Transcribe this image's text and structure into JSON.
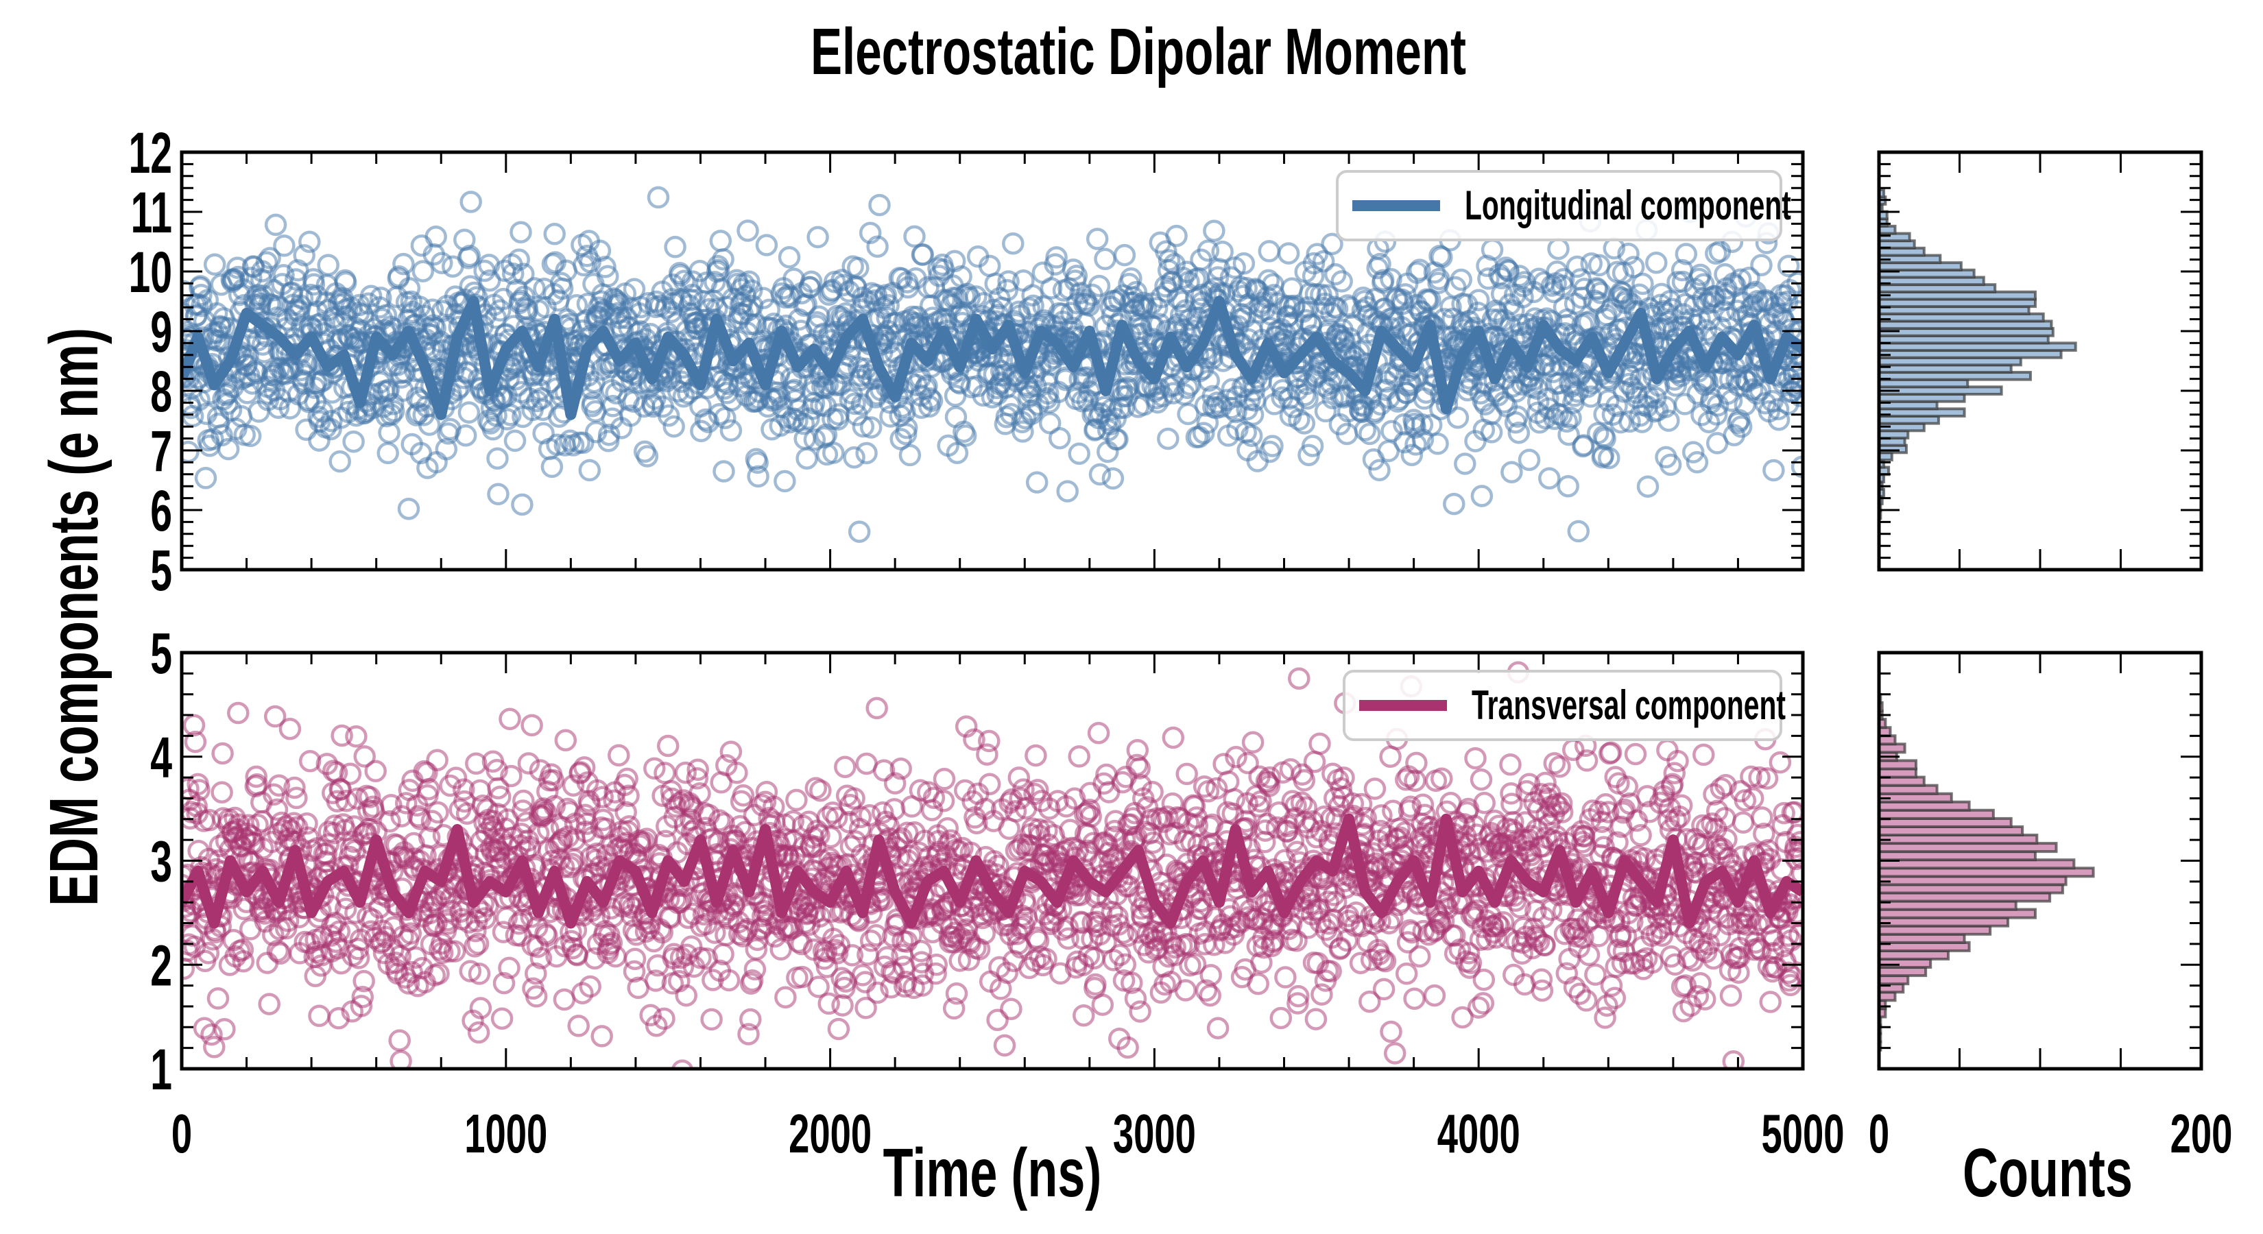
{
  "chart_data": {
    "title": "Electrostatic Dipolar Moment",
    "ylabel": "EDM components (e nm)",
    "colors": {
      "longitudinal": "#4577a9",
      "transversal": "#a8336f",
      "hist_long": "#a3bfdb",
      "hist_trans": "#d79bbd",
      "hist_edge": "#3a3a3a"
    },
    "panels": [
      {
        "id": "longitudinal",
        "type": "scatter+line",
        "legend": "Longitudinal component",
        "legend_position": "top-right",
        "xlabel": "",
        "xlim": [
          0,
          5000
        ],
        "ylim": [
          5,
          12
        ],
        "yticks": [
          5,
          6,
          7,
          8,
          9,
          10,
          11,
          12
        ],
        "scatter": {
          "n_points": 2500,
          "noise_sd": 0.8,
          "marker": "open-circle"
        },
        "line_x": [
          0,
          50,
          100,
          150,
          200,
          250,
          300,
          350,
          400,
          450,
          500,
          550,
          600,
          650,
          700,
          750,
          800,
          850,
          900,
          950,
          1000,
          1050,
          1100,
          1150,
          1200,
          1250,
          1300,
          1350,
          1400,
          1450,
          1500,
          1550,
          1600,
          1650,
          1700,
          1750,
          1800,
          1850,
          1900,
          1950,
          2000,
          2050,
          2100,
          2150,
          2200,
          2250,
          2300,
          2350,
          2400,
          2450,
          2500,
          2550,
          2600,
          2650,
          2700,
          2750,
          2800,
          2850,
          2900,
          2950,
          3000,
          3050,
          3100,
          3150,
          3200,
          3250,
          3300,
          3350,
          3400,
          3450,
          3500,
          3550,
          3600,
          3650,
          3700,
          3750,
          3800,
          3850,
          3900,
          3950,
          4000,
          4050,
          4100,
          4150,
          4200,
          4250,
          4300,
          4350,
          4400,
          4450,
          4500,
          4550,
          4600,
          4650,
          4700,
          4750,
          4800,
          4850,
          4900,
          4950,
          5000
        ],
        "line_y": [
          8.2,
          8.9,
          8.1,
          8.5,
          9.3,
          9.1,
          8.9,
          8.6,
          8.9,
          8.4,
          8.6,
          7.8,
          8.9,
          8.6,
          9.0,
          8.4,
          7.6,
          8.9,
          9.5,
          8.0,
          8.7,
          9.0,
          8.4,
          9.2,
          7.6,
          8.7,
          9.0,
          8.5,
          8.8,
          8.2,
          8.9,
          8.6,
          8.1,
          9.2,
          8.5,
          8.8,
          8.1,
          9.0,
          8.4,
          8.7,
          8.3,
          8.9,
          9.2,
          8.4,
          7.9,
          8.8,
          8.5,
          9.0,
          8.4,
          9.2,
          8.7,
          9.1,
          8.3,
          9.0,
          8.8,
          8.4,
          9.0,
          8.0,
          9.1,
          8.5,
          8.2,
          8.9,
          8.4,
          8.8,
          9.5,
          8.6,
          8.2,
          8.8,
          8.3,
          8.6,
          8.9,
          8.5,
          8.3,
          8.0,
          9.0,
          8.7,
          8.4,
          9.1,
          7.7,
          8.6,
          9.0,
          8.2,
          8.8,
          8.4,
          9.1,
          8.7,
          8.5,
          8.9,
          8.3,
          8.8,
          9.3,
          8.2,
          8.7,
          9.0,
          8.4,
          8.9,
          8.6,
          9.1,
          8.2,
          8.9,
          8.7
        ]
      },
      {
        "id": "transversal",
        "type": "scatter+line",
        "legend": "Transversal component",
        "legend_position": "top-right",
        "xlabel": "Time (ns)",
        "xlim": [
          0,
          5000
        ],
        "ylim": [
          1,
          5
        ],
        "yticks": [
          1,
          2,
          3,
          4,
          5
        ],
        "xticks": [
          0,
          1000,
          2000,
          3000,
          4000,
          5000
        ],
        "scatter": {
          "n_points": 2500,
          "noise_sd": 0.55,
          "marker": "open-circle"
        },
        "line_x": [
          0,
          50,
          100,
          150,
          200,
          250,
          300,
          350,
          400,
          450,
          500,
          550,
          600,
          650,
          700,
          750,
          800,
          850,
          900,
          950,
          1000,
          1050,
          1100,
          1150,
          1200,
          1250,
          1300,
          1350,
          1400,
          1450,
          1500,
          1550,
          1600,
          1650,
          1700,
          1750,
          1800,
          1850,
          1900,
          1950,
          2000,
          2050,
          2100,
          2150,
          2200,
          2250,
          2300,
          2350,
          2400,
          2450,
          2500,
          2550,
          2600,
          2650,
          2700,
          2750,
          2800,
          2850,
          2900,
          2950,
          3000,
          3050,
          3100,
          3150,
          3200,
          3250,
          3300,
          3350,
          3400,
          3450,
          3500,
          3550,
          3600,
          3650,
          3700,
          3750,
          3800,
          3850,
          3900,
          3950,
          4000,
          4050,
          4100,
          4150,
          4200,
          4250,
          4300,
          4350,
          4400,
          4450,
          4500,
          4550,
          4600,
          4650,
          4700,
          4750,
          4800,
          4850,
          4900,
          4950,
          5000
        ],
        "line_y": [
          2.6,
          2.9,
          2.4,
          3.0,
          2.7,
          2.9,
          2.6,
          3.1,
          2.5,
          2.8,
          2.9,
          2.6,
          3.2,
          2.7,
          2.5,
          2.9,
          2.8,
          3.3,
          2.6,
          2.8,
          2.7,
          3.0,
          2.5,
          2.9,
          2.4,
          2.8,
          2.6,
          3.0,
          2.9,
          2.5,
          3.0,
          2.8,
          3.2,
          2.6,
          3.1,
          2.7,
          3.3,
          2.5,
          2.9,
          2.7,
          2.6,
          2.9,
          2.5,
          3.2,
          2.7,
          2.4,
          2.8,
          2.9,
          2.6,
          3.0,
          2.7,
          2.5,
          2.9,
          2.8,
          2.6,
          3.0,
          2.8,
          2.7,
          2.9,
          3.1,
          2.6,
          2.4,
          2.8,
          3.0,
          2.6,
          3.3,
          2.7,
          2.9,
          2.5,
          2.8,
          3.0,
          2.9,
          3.4,
          2.7,
          2.5,
          2.8,
          3.0,
          2.6,
          3.4,
          2.7,
          2.9,
          2.6,
          3.0,
          2.8,
          2.7,
          3.1,
          2.6,
          2.9,
          2.5,
          3.0,
          2.8,
          2.6,
          3.2,
          2.4,
          2.8,
          2.9,
          2.6,
          3.0,
          2.5,
          2.8,
          2.7
        ]
      }
    ],
    "histograms": [
      {
        "id": "hist-longitudinal",
        "type": "bar-horizontal",
        "xlabel": "",
        "xlim": [
          0,
          200
        ],
        "ylim": [
          5,
          12
        ],
        "bin_start": 5.86,
        "bin_width": 0.1225,
        "counts_bottom_to_top": [
          1,
          1,
          2,
          3,
          2,
          3,
          6,
          3,
          8,
          17,
          16,
          18,
          28,
          37,
          53,
          36,
          53,
          76,
          55,
          94,
          82,
          88,
          113,
          122,
          105,
          108,
          107,
          102,
          93,
          97,
          97,
          72,
          65,
          59,
          51,
          38,
          28,
          22,
          19,
          10,
          5,
          5,
          2,
          4,
          3
        ]
      },
      {
        "id": "hist-transversal",
        "type": "bar-horizontal",
        "xlabel": "Counts",
        "xlim": [
          0,
          200
        ],
        "xticks": [
          0,
          200
        ],
        "ylim": [
          1,
          5
        ],
        "bin_start": 1.18,
        "bin_width": 0.0795,
        "counts_bottom_to_top": [
          1,
          1,
          1,
          1,
          4,
          4,
          10,
          15,
          18,
          29,
          32,
          43,
          56,
          53,
          69,
          80,
          97,
          85,
          106,
          114,
          116,
          133,
          121,
          97,
          110,
          98,
          89,
          82,
          71,
          56,
          45,
          36,
          28,
          23,
          23,
          11,
          16,
          10,
          7,
          4,
          2,
          2,
          1
        ]
      }
    ]
  }
}
